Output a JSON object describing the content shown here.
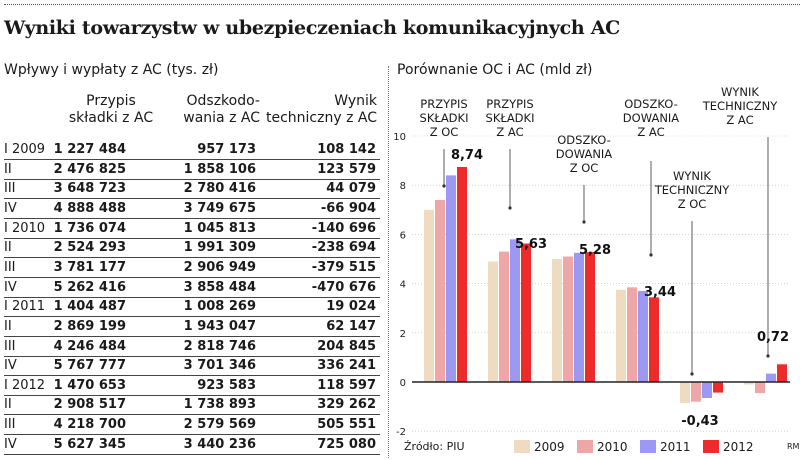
{
  "title": "Wyniki towarzystw w ubezpieczeniach komunikacyjnych AC",
  "table": {
    "title": "Wpływy i wypłaty z AC (tys. zł)",
    "headers": [
      "Przypis\nskładki z AC",
      "Odszkodo-\nwania z AC",
      "Wynik\ntechniczny z AC"
    ],
    "rows": [
      [
        "I 2009",
        "1 227 484",
        "957 173",
        "108 142"
      ],
      [
        "II",
        "2 476 825",
        "1 858 106",
        "123 579"
      ],
      [
        "III",
        "3 648 723",
        "2 780 416",
        "44 079"
      ],
      [
        "IV",
        "4 888 488",
        "3 749 675",
        "-66 904"
      ],
      [
        "I 2010",
        "1 736 074",
        "1 045 813",
        "-140 696"
      ],
      [
        "II",
        "2 524 293",
        "1 991 309",
        "-238 694"
      ],
      [
        "III",
        "3 781 177",
        "2 906 949",
        "-379 515"
      ],
      [
        "IV",
        "5 262 416",
        "3 858 484",
        "-470 676"
      ],
      [
        "I 2011",
        "1 404 487",
        "1 008 269",
        "19 024"
      ],
      [
        "II",
        "2 869 199",
        "1 943 047",
        "62 147"
      ],
      [
        "III",
        "4 246 484",
        "2 818 746",
        "204 845"
      ],
      [
        "IV",
        "5 767 777",
        "3 701 346",
        "336 241"
      ],
      [
        "I 2012",
        "1 470 653",
        "923 583",
        "118 597"
      ],
      [
        "II",
        "2 908 517",
        "1 738 893",
        "329 262"
      ],
      [
        "III",
        "4 218 700",
        "2 579 569",
        "505 551"
      ],
      [
        "IV",
        "5 627 345",
        "3 440 236",
        "725 080"
      ]
    ]
  },
  "chart_data": {
    "type": "bar",
    "title": "Porównanie OC i AC (mld zł)",
    "categories": [
      "PRZYPIS\nSKŁADKI\nZ OC",
      "PRZYPIS\nSKŁADKI\nZ AC",
      "ODSZKO-\nDOWANIA\nZ OC",
      "ODSZKO-\nDOWANIA\nZ AC",
      "WYNIK\nTECHNICZNY\nZ OC",
      "WYNIK\nTECHNICZNY\nZ AC"
    ],
    "series": [
      {
        "name": "2009",
        "color": "#eedcc2",
        "values": [
          7.0,
          4.9,
          5.0,
          3.75,
          -0.85,
          -0.1
        ]
      },
      {
        "name": "2010",
        "color": "#efa6a6",
        "values": [
          7.4,
          5.3,
          5.1,
          3.85,
          -0.8,
          -0.45
        ]
      },
      {
        "name": "2011",
        "color": "#9d99f2",
        "values": [
          8.4,
          5.8,
          5.25,
          3.7,
          -0.65,
          0.34
        ]
      },
      {
        "name": "2012",
        "color": "#ee2b2b",
        "values": [
          8.74,
          5.63,
          5.28,
          3.44,
          -0.43,
          0.72
        ]
      }
    ],
    "data_labels": [
      "8,74",
      "5,63",
      "5,28",
      "3,44",
      "-0,43",
      "0,72"
    ],
    "yticks": [
      -2,
      0,
      2,
      4,
      6,
      8,
      10
    ],
    "ylim": [
      -2,
      10
    ],
    "legend_position": "bottom",
    "source": "Źródło: PIU",
    "credit": "RM"
  }
}
